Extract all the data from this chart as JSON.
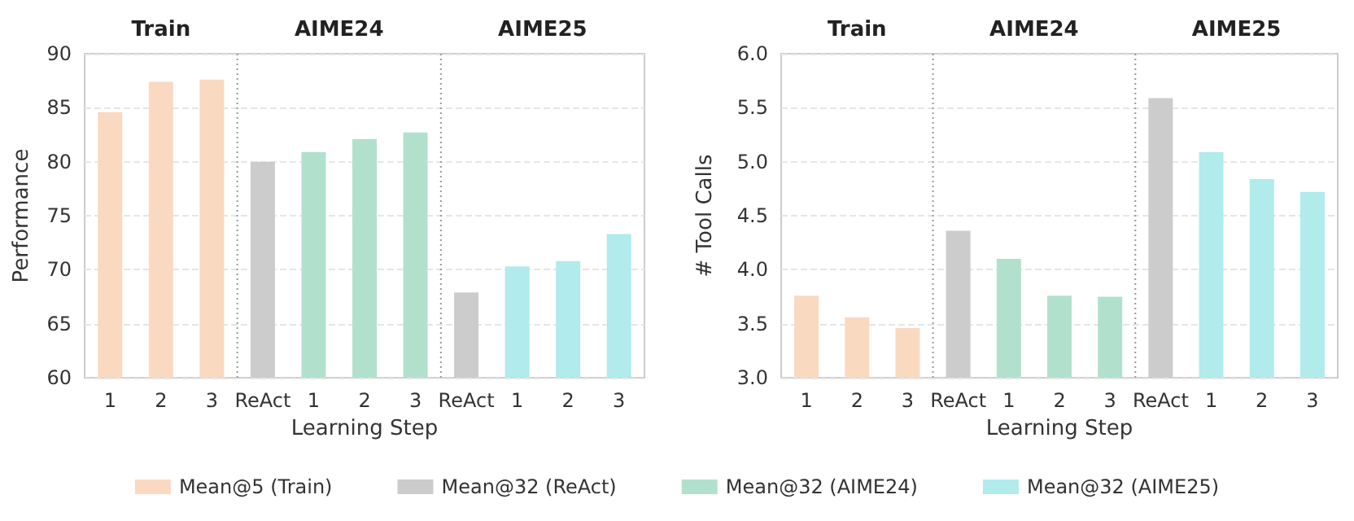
{
  "chart_data": [
    {
      "type": "bar",
      "xlabel": "Learning Step",
      "ylabel": "Performance",
      "categories": [
        "1",
        "2",
        "3",
        "ReAct",
        "1",
        "2",
        "3",
        "ReAct",
        "1",
        "2",
        "3"
      ],
      "series": [
        {
          "name": "Mean@5 (Train)",
          "color": "#fad9c1",
          "values": [
            84.6,
            87.4,
            87.6,
            null,
            null,
            null,
            null,
            null,
            null,
            null,
            null
          ]
        },
        {
          "name": "Mean@32 (ReAct)",
          "color": "#cccccc",
          "values": [
            null,
            null,
            null,
            80.0,
            null,
            null,
            null,
            67.9,
            null,
            null,
            null
          ]
        },
        {
          "name": "Mean@32 (AIME24)",
          "color": "#b1e1cd",
          "values": [
            null,
            null,
            null,
            null,
            80.9,
            82.1,
            82.7,
            null,
            null,
            null,
            null
          ]
        },
        {
          "name": "Mean@32 (AIME25)",
          "color": "#b1ebeb",
          "values": [
            null,
            null,
            null,
            null,
            null,
            null,
            null,
            null,
            70.3,
            70.8,
            73.3
          ]
        }
      ],
      "ylim": [
        60,
        90
      ],
      "yticks": [
        60,
        65,
        70,
        75,
        80,
        85,
        90
      ],
      "grid": "y",
      "legend": "bottom",
      "annotations": [
        "Train",
        "AIME24",
        "AIME25"
      ]
    },
    {
      "type": "bar",
      "xlabel": "Learning Step",
      "ylabel": "# Tool Calls",
      "categories": [
        "1",
        "2",
        "3",
        "ReAct",
        "1",
        "2",
        "3",
        "ReAct",
        "1",
        "2",
        "3"
      ],
      "series": [
        {
          "color": "#fad9c1",
          "values": [
            3.76,
            3.56,
            3.46,
            null,
            null,
            null,
            null,
            null,
            null,
            null,
            null
          ]
        },
        {
          "color": "#cccccc",
          "values": [
            null,
            null,
            null,
            4.36,
            null,
            null,
            null,
            5.59,
            null,
            null,
            null
          ]
        },
        {
          "color": "#b1e1cd",
          "values": [
            null,
            null,
            null,
            null,
            4.1,
            3.76,
            3.75,
            null,
            null,
            null,
            null
          ]
        },
        {
          "color": "#b1ebeb",
          "values": [
            null,
            null,
            null,
            null,
            null,
            null,
            null,
            null,
            5.09,
            4.84,
            4.72
          ]
        }
      ],
      "ylim": [
        3.0,
        6.0
      ],
      "yticks": [
        {
          "value": 3,
          "label": "3.0"
        },
        {
          "value": 3.5,
          "label": "3.5"
        },
        {
          "value": 4,
          "label": "4.0"
        },
        {
          "value": 4.5,
          "label": "4.5"
        },
        {
          "value": 5,
          "label": "5.0"
        },
        {
          "value": 5.5,
          "label": "5.5"
        },
        {
          "value": 6,
          "label": "6.0"
        }
      ],
      "grid": "y",
      "legend": false,
      "annotations": [
        "Train",
        "AIME24",
        "AIME25"
      ]
    }
  ]
}
